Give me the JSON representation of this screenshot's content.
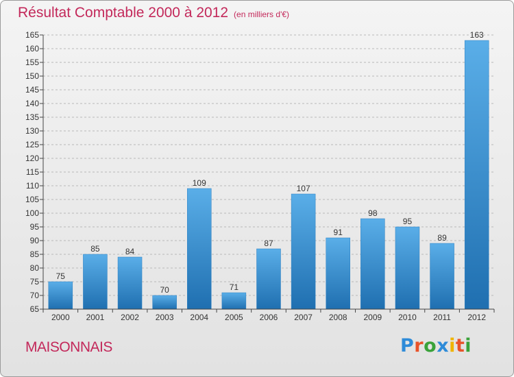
{
  "header": {
    "title": "Résultat Comptable 2000 à 2012",
    "subtitle": "(en milliers d'€)"
  },
  "footer": {
    "place": "MAISONNAIS",
    "logo": {
      "text": "Proxiti",
      "colors": [
        "#2e8bd8",
        "#e8532a",
        "#3aa23a",
        "#2e8bd8",
        "#f0b400",
        "#e8532a",
        "#3aa23a"
      ]
    }
  },
  "colors": {
    "bar_light": "#5aaee8",
    "bar_dark": "#1f6fb0",
    "axis": "#444444",
    "grid": "#b8b8b8",
    "text": "#333333"
  },
  "chart_data": {
    "type": "bar",
    "title": "Résultat Comptable 2000 à 2012",
    "subtitle": "(en milliers d'€)",
    "categories": [
      "2000",
      "2001",
      "2002",
      "2003",
      "2004",
      "2005",
      "2006",
      "2007",
      "2008",
      "2009",
      "2010",
      "2011",
      "2012"
    ],
    "values": [
      75,
      85,
      84,
      70,
      109,
      71,
      87,
      107,
      91,
      98,
      95,
      89,
      163
    ],
    "ylim": [
      65,
      165
    ],
    "yticks": [
      65,
      70,
      75,
      80,
      85,
      90,
      95,
      100,
      105,
      110,
      115,
      120,
      125,
      130,
      135,
      140,
      145,
      150,
      155,
      160,
      165
    ],
    "xlabel": "",
    "ylabel": "",
    "grid": "horizontal-dashed",
    "data_labels": true
  }
}
